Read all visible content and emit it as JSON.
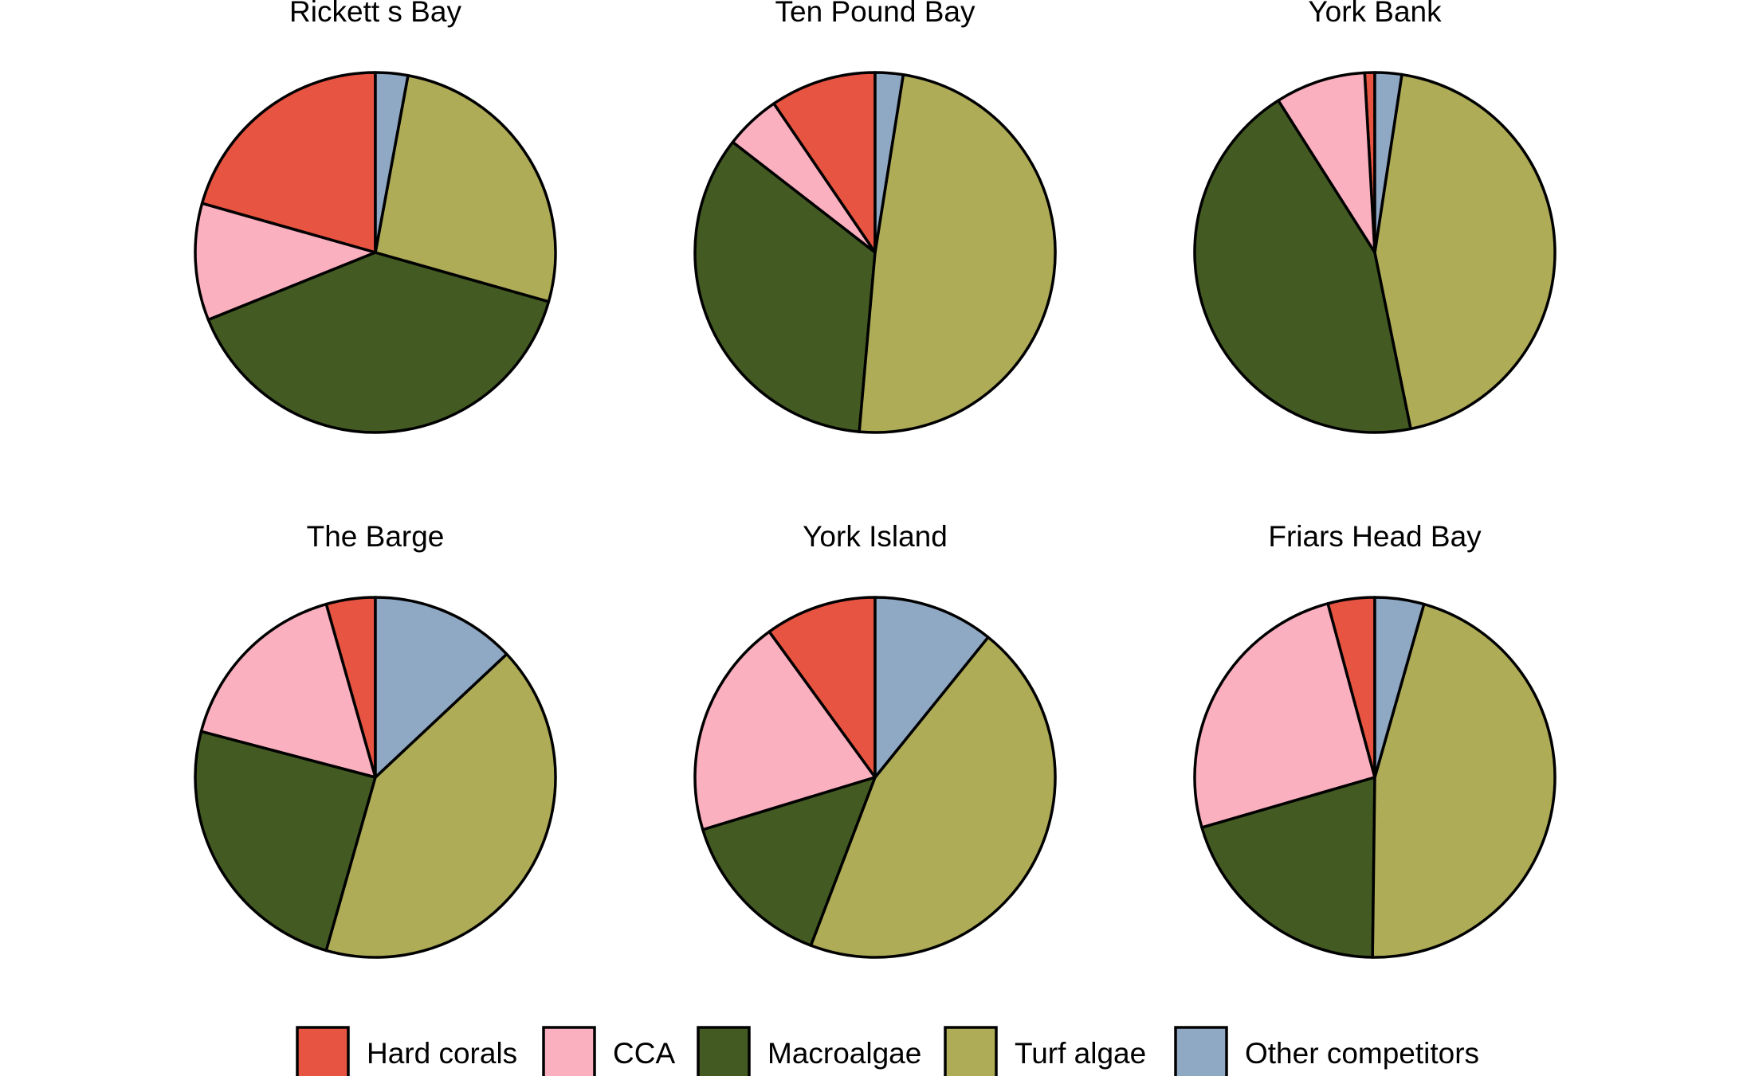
{
  "chart_data": {
    "type": "pie",
    "categories": [
      "Hard corals",
      "CCA",
      "Macroalgae",
      "Turf algae",
      "Other competitors"
    ],
    "colors": [
      "#E85442",
      "#FBB0C0",
      "#435B22",
      "#AFAC58",
      "#8FA8C4"
    ],
    "legend_position": "bottom",
    "panels": [
      {
        "title": "Rickett s Bay",
        "values": [
          20.6,
          10.5,
          39.5,
          26.5,
          2.9
        ]
      },
      {
        "title": "Ten Pound Bay",
        "values": [
          9.5,
          5.0,
          34.1,
          48.9,
          2.5
        ]
      },
      {
        "title": "York Bank",
        "values": [
          0.9,
          8.1,
          44.2,
          44.4,
          2.4
        ]
      },
      {
        "title": "The Barge",
        "values": [
          4.4,
          16.5,
          24.7,
          41.4,
          13.0
        ]
      },
      {
        "title": "York Island",
        "values": [
          10.0,
          19.7,
          14.5,
          45.0,
          10.8
        ]
      },
      {
        "title": "Friars Head Bay",
        "values": [
          4.2,
          25.3,
          20.3,
          45.8,
          4.4
        ]
      }
    ]
  }
}
